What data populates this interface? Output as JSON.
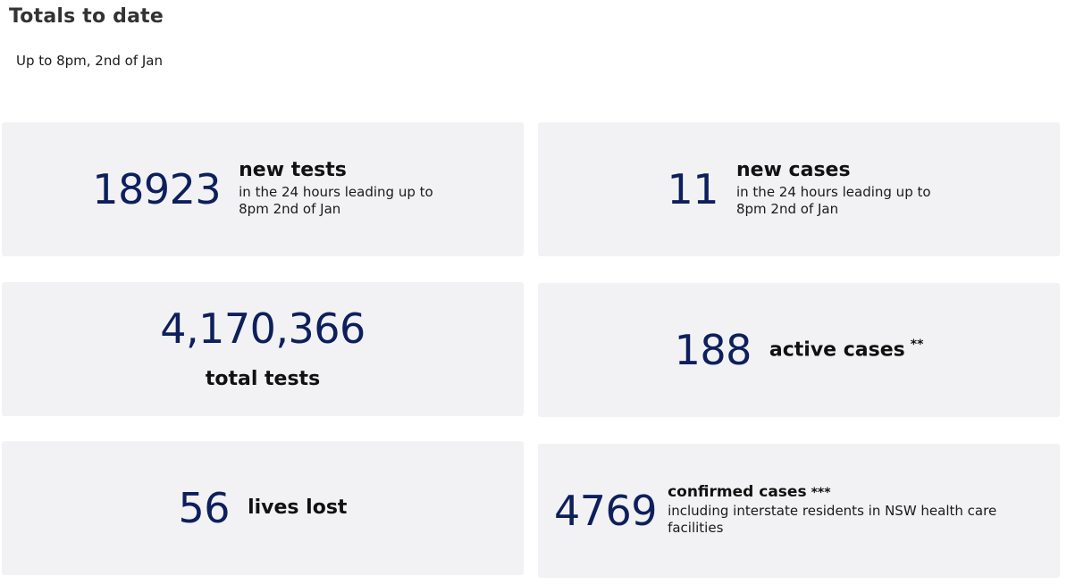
{
  "header": {
    "title": "Totals to date",
    "subtitle": "Up to 8pm, 2nd of Jan"
  },
  "cards": {
    "new_tests": {
      "value": "18923",
      "label": "new tests",
      "sub_line1": "in the 24 hours leading up to",
      "sub_line2": "8pm 2nd of Jan"
    },
    "new_cases": {
      "value": "11",
      "label": "new cases",
      "sub_line1": "in the 24 hours leading up to",
      "sub_line2": "8pm 2nd of Jan"
    },
    "total_tests": {
      "value": "4,170,366",
      "label": "total tests"
    },
    "active_cases": {
      "value": "188",
      "label": "active cases",
      "note": "**"
    },
    "lives_lost": {
      "value": "56",
      "label": "lives lost"
    },
    "confirmed_cases": {
      "value": "4769",
      "label": "confirmed cases",
      "note": "***",
      "sub_line1": "including interstate residents in NSW health care",
      "sub_line2": "facilities"
    }
  },
  "colors": {
    "number": "#0d1f5c",
    "card_bg": "#f2f2f4"
  }
}
